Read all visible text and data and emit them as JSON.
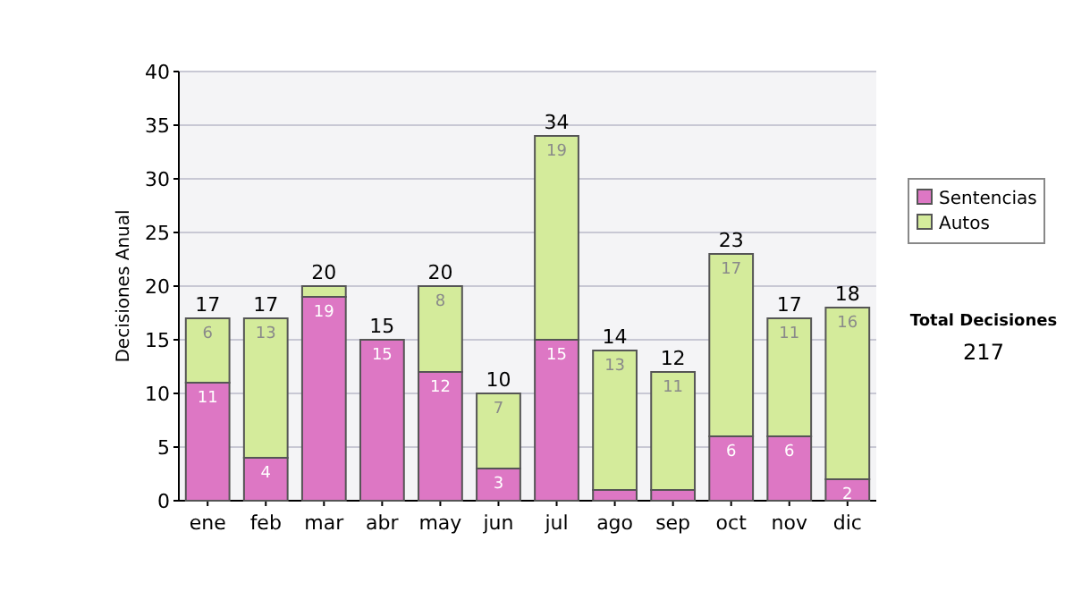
{
  "chart_data": {
    "type": "bar",
    "stacked": true,
    "ylabel": "Decisiones Anual",
    "categories": [
      "ene",
      "feb",
      "mar",
      "abr",
      "may",
      "jun",
      "jul",
      "ago",
      "sep",
      "oct",
      "nov",
      "dic"
    ],
    "series": [
      {
        "name": "Sentencias",
        "color": "#dd77c4",
        "values": [
          11,
          4,
          19,
          15,
          12,
          3,
          15,
          1,
          1,
          6,
          6,
          2
        ],
        "value_labels": [
          "11",
          "4",
          "19",
          "15",
          "12",
          "3",
          "15",
          null,
          null,
          "6",
          "6",
          "2"
        ]
      },
      {
        "name": "Autos",
        "color": "#d4eb9b",
        "values": [
          6,
          13,
          1,
          0,
          8,
          7,
          19,
          13,
          11,
          17,
          11,
          16
        ],
        "value_labels": [
          "6",
          "13",
          null,
          null,
          "8",
          "7",
          "19",
          "13",
          "11",
          "17",
          "11",
          "16"
        ]
      }
    ],
    "totals": [
      "17",
      "17",
      "20",
      "15",
      "20",
      "10",
      "34",
      "14",
      "12",
      "23",
      "17",
      "18"
    ],
    "ylim": [
      0,
      40
    ],
    "yticks": [
      0,
      5,
      10,
      15,
      20,
      25,
      30,
      35,
      40
    ],
    "grid": "y",
    "legend": "right",
    "annotations": [
      "Total Decisiones",
      "217"
    ]
  }
}
